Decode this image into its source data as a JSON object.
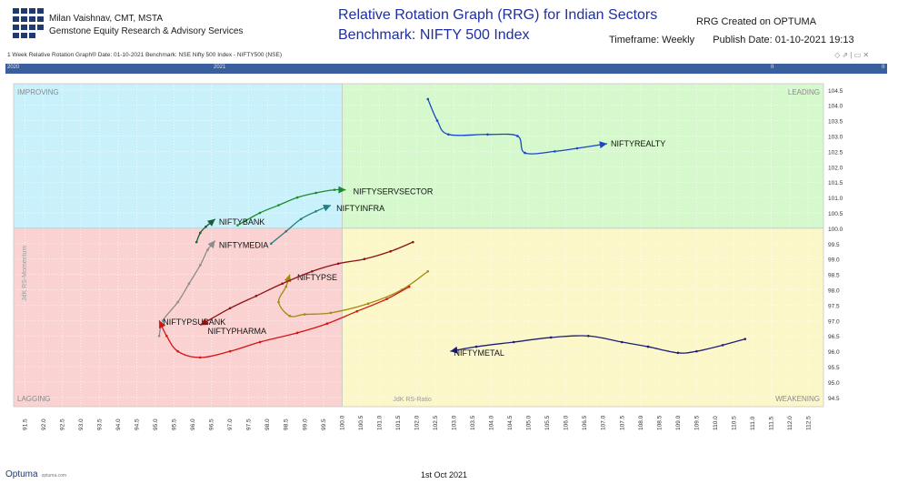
{
  "header": {
    "author": "Milan Vaishnav, CMT, MSTA",
    "firm": "Gemstone Equity Research & Advisory Services",
    "title_line1": "Relative Rotation Graph (RRG) for Indian Sectors",
    "title_line2": "Benchmark: NIFTY 500 Index",
    "created_on": "RRG Created on OPTUMA",
    "timeframe": "Timeframe: Weekly",
    "publish_date": "Publish Date: 01-10-2021 19:13"
  },
  "infobar": {
    "text": "1 Week Relative Rotation Graph®   Date: 01-10-2021  Benchmark:  NSE Nifty 500 Index - NIFTY500 (NSE)",
    "controls": "◇  ⇗  |  ▭  ✕"
  },
  "timeline": {
    "labels": [
      "2020",
      "2021"
    ],
    "end_marks": [
      "II",
      "II"
    ]
  },
  "footer": {
    "brand": "Optuma",
    "brand_url": "optuma.com",
    "date": "1st Oct 2021"
  },
  "chart_data": {
    "type": "scatter",
    "title": "Relative Rotation Graph (RRG) for Indian Sectors",
    "xlabel": "JdK RS-Ratio",
    "ylabel": "JdK RS-Momentum",
    "xlim": [
      91.2,
      112.9
    ],
    "ylim": [
      94.2,
      104.7
    ],
    "x_ticks": [
      91.5,
      92.0,
      92.5,
      93.0,
      93.5,
      94.0,
      94.5,
      95.0,
      95.5,
      96.0,
      96.5,
      97.0,
      97.5,
      98.0,
      98.5,
      99.0,
      99.5,
      100.0,
      100.5,
      101.0,
      101.5,
      102.0,
      102.5,
      103.0,
      103.5,
      104.0,
      104.5,
      105.0,
      105.5,
      106.0,
      106.5,
      107.0,
      107.5,
      108.0,
      108.5,
      109.0,
      109.5,
      110.0,
      110.5,
      111.0,
      111.5,
      112.0,
      112.5
    ],
    "y_ticks": [
      94.5,
      95.0,
      95.5,
      96.0,
      96.5,
      97.0,
      97.5,
      98.0,
      98.5,
      99.0,
      99.5,
      100.0,
      100.5,
      101.0,
      101.5,
      102.0,
      102.5,
      103.0,
      103.5,
      104.0,
      104.5
    ],
    "center": [
      100,
      100
    ],
    "grid": true,
    "quadrants": [
      {
        "name": "IMPROVING",
        "color": "#c9f1fb"
      },
      {
        "name": "LEADING",
        "color": "#d6f8cd"
      },
      {
        "name": "LAGGING",
        "color": "#fbd2d2"
      },
      {
        "name": "WEAKENING",
        "color": "#fbf7c9"
      }
    ],
    "series": [
      {
        "name": "NIFTYREALTY",
        "color": "#1a47c8",
        "points": [
          [
            102.3,
            104.2
          ],
          [
            102.55,
            103.5
          ],
          [
            102.85,
            103.05
          ],
          [
            103.9,
            103.05
          ],
          [
            104.7,
            103.0
          ],
          [
            104.9,
            102.45
          ],
          [
            105.7,
            102.5
          ],
          [
            106.3,
            102.6
          ],
          [
            107.1,
            102.75
          ]
        ]
      },
      {
        "name": "NIFTYSERVSECTOR",
        "color": "#1f8a2c",
        "points": [
          [
            97.2,
            100.1
          ],
          [
            97.8,
            100.5
          ],
          [
            98.3,
            100.75
          ],
          [
            98.8,
            101.0
          ],
          [
            99.3,
            101.15
          ],
          [
            99.8,
            101.25
          ],
          [
            100.1,
            101.25
          ]
        ]
      },
      {
        "name": "NIFTYINFRA",
        "color": "#1e7f86",
        "points": [
          [
            98.1,
            99.5
          ],
          [
            98.5,
            99.9
          ],
          [
            98.9,
            100.3
          ],
          [
            99.3,
            100.55
          ],
          [
            99.7,
            100.75
          ]
        ]
      },
      {
        "name": "NIFTYBANK",
        "color": "#175c3c",
        "points": [
          [
            96.1,
            99.55
          ],
          [
            96.2,
            99.85
          ],
          [
            96.35,
            100.05
          ],
          [
            96.6,
            100.3
          ]
        ]
      },
      {
        "name": "NIFTYMEDIA",
        "color": "#8c8c8c",
        "points": [
          [
            95.1,
            96.5
          ],
          [
            95.2,
            97.0
          ],
          [
            95.6,
            97.6
          ],
          [
            95.9,
            98.2
          ],
          [
            96.2,
            98.8
          ],
          [
            96.4,
            99.3
          ],
          [
            96.6,
            99.6
          ]
        ]
      },
      {
        "name": "NIFTYPSE",
        "color": "#a08a10",
        "points": [
          [
            102.3,
            98.6
          ],
          [
            101.6,
            98.0
          ],
          [
            100.7,
            97.55
          ],
          [
            99.7,
            97.25
          ],
          [
            99.0,
            97.2
          ],
          [
            98.6,
            97.15
          ],
          [
            98.3,
            97.6
          ],
          [
            98.5,
            98.1
          ],
          [
            98.6,
            98.5
          ]
        ]
      },
      {
        "name": "NIFTYPSUBANK",
        "color": "#d51414",
        "points": [
          [
            101.8,
            98.1
          ],
          [
            101.2,
            97.7
          ],
          [
            100.4,
            97.3
          ],
          [
            99.6,
            96.9
          ],
          [
            98.8,
            96.6
          ],
          [
            97.8,
            96.3
          ],
          [
            97.0,
            96.0
          ],
          [
            96.2,
            95.8
          ],
          [
            95.6,
            96.0
          ],
          [
            95.3,
            96.5
          ],
          [
            95.1,
            97.0
          ]
        ]
      },
      {
        "name": "NIFTYPHARMA",
        "color": "#8c1212",
        "points": [
          [
            101.9,
            99.55
          ],
          [
            101.3,
            99.25
          ],
          [
            100.6,
            99.0
          ],
          [
            99.9,
            98.85
          ],
          [
            99.2,
            98.6
          ],
          [
            98.4,
            98.2
          ],
          [
            97.7,
            97.8
          ],
          [
            97.0,
            97.4
          ],
          [
            96.2,
            96.85
          ]
        ]
      },
      {
        "name": "NIFTYMETAL",
        "color": "#1c1f78",
        "points": [
          [
            110.8,
            96.4
          ],
          [
            110.2,
            96.2
          ],
          [
            109.5,
            96.0
          ],
          [
            109.0,
            95.95
          ],
          [
            108.2,
            96.15
          ],
          [
            107.5,
            96.3
          ],
          [
            106.6,
            96.5
          ],
          [
            105.6,
            96.45
          ],
          [
            104.6,
            96.3
          ],
          [
            103.6,
            96.15
          ],
          [
            102.9,
            96.0
          ]
        ]
      }
    ],
    "label_positions": [
      {
        "name": "NIFTYREALTY",
        "anchor": [
          107.2,
          102.75
        ]
      },
      {
        "name": "NIFTYSERVSECTOR",
        "anchor": [
          100.3,
          101.2
        ]
      },
      {
        "name": "NIFTYINFRA",
        "anchor": [
          99.85,
          100.65
        ]
      },
      {
        "name": "NIFTYBANK",
        "anchor": [
          96.7,
          100.2
        ]
      },
      {
        "name": "NIFTYMEDIA",
        "anchor": [
          96.7,
          99.45
        ]
      },
      {
        "name": "NIFTYPSE",
        "anchor": [
          98.8,
          98.4
        ]
      },
      {
        "name": "NIFTYPSUBANK",
        "anchor": [
          95.2,
          96.95
        ]
      },
      {
        "name": "NIFTYPHARMA",
        "anchor": [
          96.4,
          96.65
        ]
      },
      {
        "name": "NIFTYMETAL",
        "anchor": [
          103.0,
          95.95
        ]
      }
    ]
  }
}
